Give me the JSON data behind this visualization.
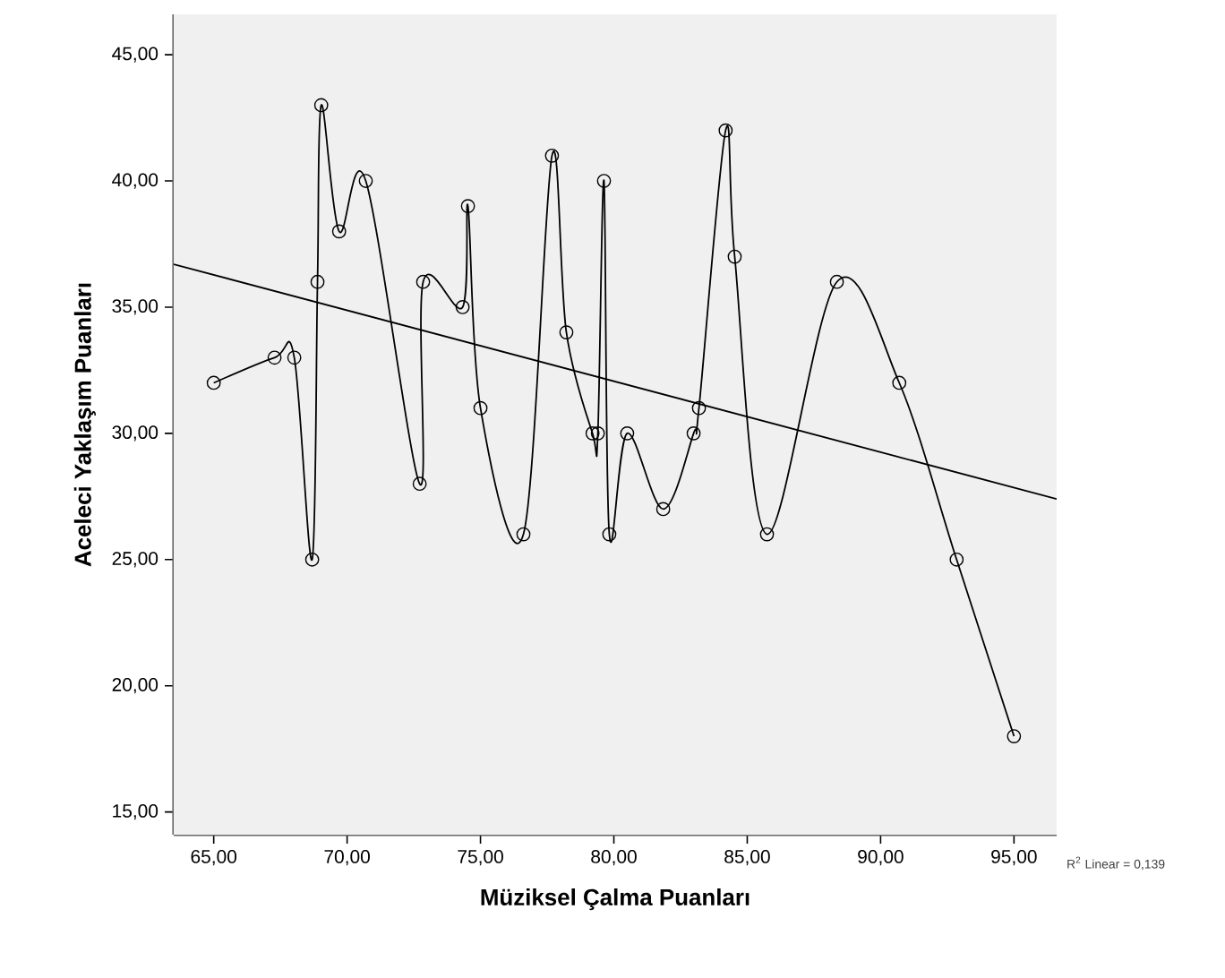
{
  "chart_data": {
    "type": "line",
    "xlabel": "Müziksel Çalma Puanları",
    "ylabel": "Aceleci Yaklaşım Puanları",
    "xlim": [
      63.5,
      96.6
    ],
    "ylim": [
      14.1,
      46.6
    ],
    "xticks": [
      {
        "value": 65,
        "label": "65,00"
      },
      {
        "value": 70,
        "label": "70,00"
      },
      {
        "value": 75,
        "label": "75,00"
      },
      {
        "value": 80,
        "label": "80,00"
      },
      {
        "value": 85,
        "label": "85,00"
      },
      {
        "value": 90,
        "label": "90,00"
      },
      {
        "value": 95,
        "label": "95,00"
      }
    ],
    "yticks": [
      {
        "value": 15,
        "label": "15,00"
      },
      {
        "value": 20,
        "label": "20,00"
      },
      {
        "value": 25,
        "label": "25,00"
      },
      {
        "value": 30,
        "label": "30,00"
      },
      {
        "value": 35,
        "label": "35,00"
      },
      {
        "value": 40,
        "label": "40,00"
      },
      {
        "value": 45,
        "label": "45,00"
      }
    ],
    "series": [
      {
        "color": "#000000",
        "marker": "circle",
        "x": [
          65.0,
          67.28,
          68.02,
          68.69,
          68.89,
          69.03,
          69.7,
          70.7,
          72.72,
          72.85,
          74.33,
          74.53,
          75.0,
          76.61,
          77.68,
          78.22,
          79.2,
          79.4,
          79.63,
          79.83,
          80.5,
          81.85,
          82.99,
          83.19,
          84.19,
          84.53,
          85.74,
          88.36,
          90.7,
          92.85,
          95.0
        ],
        "values": [
          32,
          33,
          33,
          25,
          36,
          43,
          38,
          40,
          28,
          36,
          35,
          39,
          31,
          26,
          41,
          34,
          30,
          30,
          40,
          26,
          30,
          27,
          30,
          31,
          42,
          37,
          26,
          36,
          32,
          25,
          18
        ]
      },
      {
        "color": "#000000",
        "marker": "none",
        "x": [
          63.5,
          96.6
        ],
        "values": [
          36.7,
          27.4
        ]
      }
    ],
    "annotations": [
      "R$^{2}$ Linear = 0,139"
    ]
  }
}
